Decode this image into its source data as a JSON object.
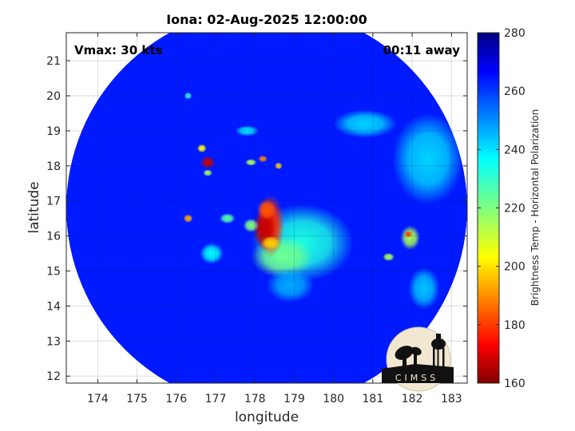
{
  "chart_data": {
    "type": "heatmap",
    "title": "Iona: 02-Aug-2025 12:00:00",
    "annotations": {
      "vmax": "Vmax: 30 kts",
      "time_offset": "00:11 away"
    },
    "xlabel": "longitude",
    "ylabel": "latitude",
    "xlim": [
      173.2,
      183.4
    ],
    "ylim": [
      11.8,
      21.8
    ],
    "x_ticks": [
      174,
      175,
      176,
      177,
      178,
      179,
      180,
      181,
      182,
      183
    ],
    "y_ticks": [
      12,
      13,
      14,
      15,
      16,
      17,
      18,
      19,
      20,
      21
    ],
    "grid": true,
    "swath": {
      "center_lon": 178.3,
      "center_lat": 16.8,
      "radius_deg": 5.1
    },
    "colorbar": {
      "label": "Brightness Temp - Horizontal Polarization",
      "range": [
        160,
        280
      ],
      "ticks": [
        160,
        180,
        200,
        220,
        240,
        260,
        280
      ],
      "colormap": "jet"
    },
    "background_value": 262,
    "features": [
      {
        "lon": 179.2,
        "lat": 15.8,
        "sx": 1.3,
        "sy": 1.1,
        "value": 232
      },
      {
        "lon": 178.7,
        "lat": 15.4,
        "sx": 0.8,
        "sy": 0.6,
        "value": 222
      },
      {
        "lon": 178.4,
        "lat": 16.3,
        "sx": 0.35,
        "sy": 0.9,
        "value": 180
      },
      {
        "lon": 178.25,
        "lat": 16.2,
        "sx": 0.3,
        "sy": 0.6,
        "value": 168
      },
      {
        "lon": 178.3,
        "lat": 16.75,
        "sx": 0.25,
        "sy": 0.3,
        "value": 185
      },
      {
        "lon": 178.4,
        "lat": 15.8,
        "sx": 0.25,
        "sy": 0.2,
        "value": 200
      },
      {
        "lon": 176.8,
        "lat": 18.1,
        "sx": 0.18,
        "sy": 0.18,
        "value": 168
      },
      {
        "lon": 176.65,
        "lat": 18.5,
        "sx": 0.12,
        "sy": 0.12,
        "value": 205
      },
      {
        "lon": 176.8,
        "lat": 17.8,
        "sx": 0.12,
        "sy": 0.1,
        "value": 215
      },
      {
        "lon": 178.2,
        "lat": 18.2,
        "sx": 0.12,
        "sy": 0.1,
        "value": 190
      },
      {
        "lon": 177.9,
        "lat": 18.1,
        "sx": 0.15,
        "sy": 0.1,
        "value": 215
      },
      {
        "lon": 178.6,
        "lat": 18.0,
        "sx": 0.1,
        "sy": 0.1,
        "value": 200
      },
      {
        "lon": 176.3,
        "lat": 16.5,
        "sx": 0.12,
        "sy": 0.12,
        "value": 195
      },
      {
        "lon": 177.3,
        "lat": 16.5,
        "sx": 0.2,
        "sy": 0.15,
        "value": 225
      },
      {
        "lon": 177.9,
        "lat": 16.3,
        "sx": 0.2,
        "sy": 0.2,
        "value": 220
      },
      {
        "lon": 181.95,
        "lat": 15.95,
        "sx": 0.25,
        "sy": 0.35,
        "value": 215
      },
      {
        "lon": 181.9,
        "lat": 16.05,
        "sx": 0.1,
        "sy": 0.1,
        "value": 182
      },
      {
        "lon": 181.4,
        "lat": 15.4,
        "sx": 0.15,
        "sy": 0.12,
        "value": 215
      },
      {
        "lon": 182.4,
        "lat": 18.2,
        "sx": 0.9,
        "sy": 1.3,
        "value": 240
      },
      {
        "lon": 180.8,
        "lat": 19.2,
        "sx": 0.8,
        "sy": 0.4,
        "value": 240
      },
      {
        "lon": 176.9,
        "lat": 15.5,
        "sx": 0.3,
        "sy": 0.3,
        "value": 235
      },
      {
        "lon": 182.3,
        "lat": 14.5,
        "sx": 0.4,
        "sy": 0.6,
        "value": 242
      },
      {
        "lon": 178.9,
        "lat": 14.6,
        "sx": 0.6,
        "sy": 0.5,
        "value": 245
      },
      {
        "lon": 176.3,
        "lat": 20.0,
        "sx": 0.1,
        "sy": 0.1,
        "value": 230
      },
      {
        "lon": 177.8,
        "lat": 19.0,
        "sx": 0.3,
        "sy": 0.15,
        "value": 238
      }
    ],
    "logo": {
      "text": "CIMSS"
    }
  }
}
